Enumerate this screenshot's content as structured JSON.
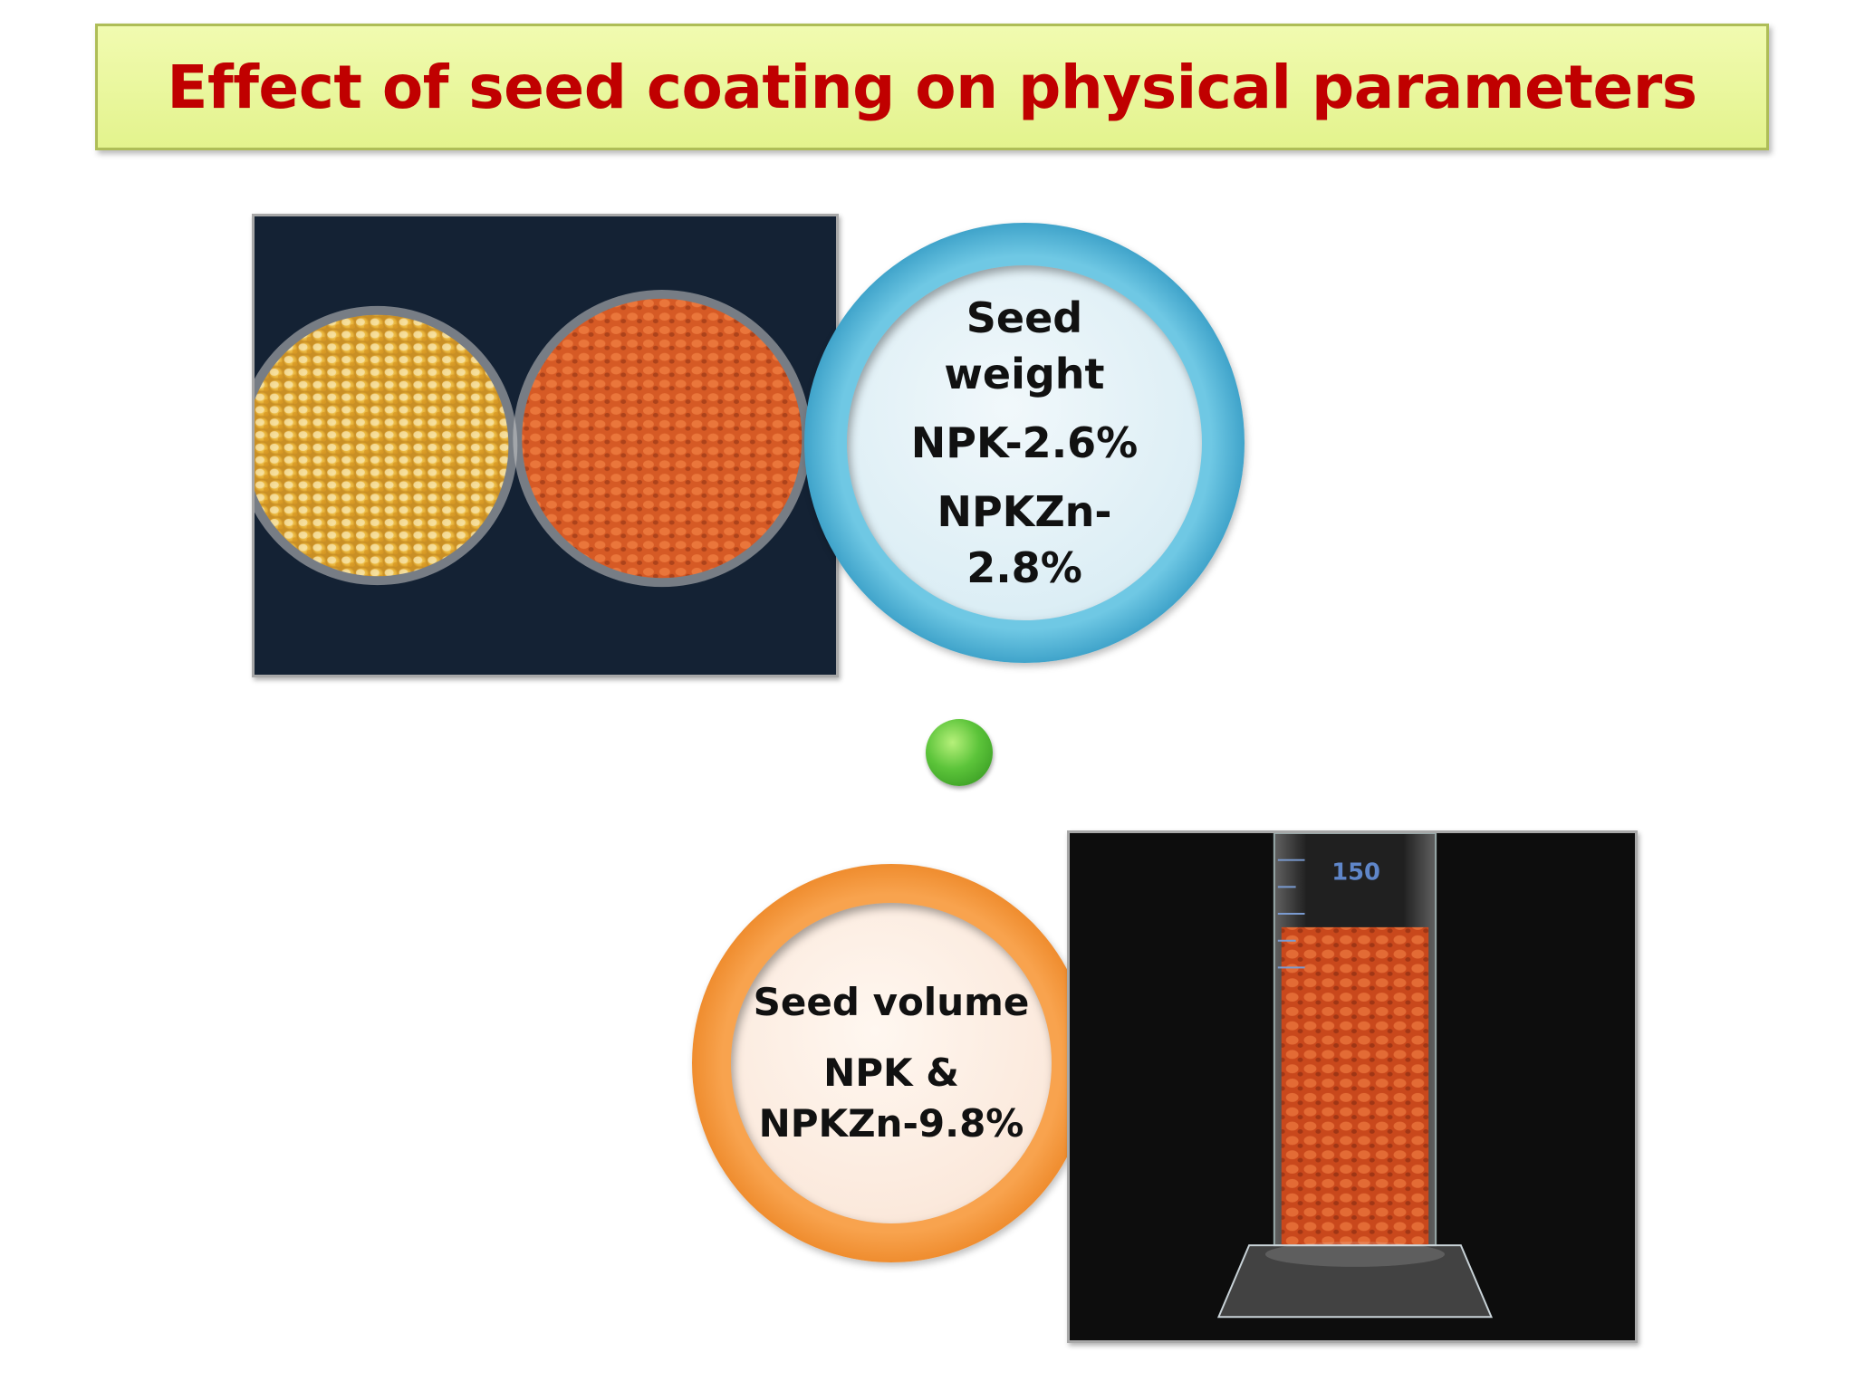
{
  "title": "Effect of seed coating on physical parameters",
  "weight_card": {
    "heading_line1": "Seed",
    "heading_line2": "weight",
    "npk": "NPK-2.6%",
    "npkzn_line1": "NPKZn-",
    "npkzn_line2": "2.8%",
    "ring_color": "#4fb3d9"
  },
  "volume_card": {
    "heading": "Seed volume",
    "line1": "NPK &",
    "line2": "NPKZn-9.8%",
    "ring_color": "#f7962d"
  },
  "connector_dot_color": "#55bd35",
  "photos": {
    "seeds_photo": "petri dishes of uncoated (yellow) and coated (orange) maize seeds",
    "cylinder_photo": "graduated cylinder filled with coated maize seeds",
    "cylinder_scale_label": "150"
  }
}
